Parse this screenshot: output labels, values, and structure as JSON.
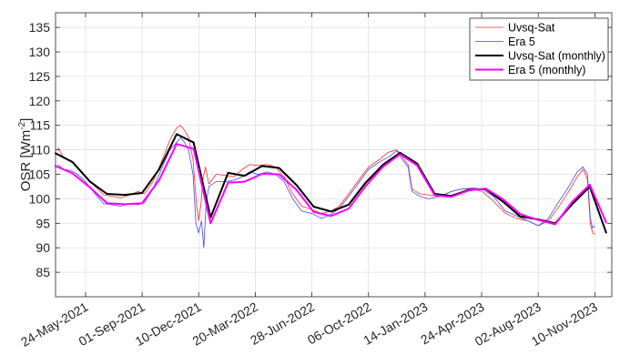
{
  "chart_data": {
    "type": "line",
    "ylabel_main": "OSR [Wm",
    "ylabel_sup": "-2",
    "ylabel_close": "]",
    "ylim": [
      80,
      138
    ],
    "yticks": [
      85,
      90,
      95,
      100,
      105,
      110,
      115,
      120,
      125,
      130,
      135
    ],
    "xlim": [
      "2021-04-01",
      "2023-12-10"
    ],
    "xticks": [
      {
        "date": "2021-05-24",
        "label": "24-May-2021"
      },
      {
        "date": "2021-09-01",
        "label": "01-Sep-2021"
      },
      {
        "date": "2021-12-10",
        "label": "10-Dec-2021"
      },
      {
        "date": "2022-03-20",
        "label": "20-Mar-2022"
      },
      {
        "date": "2022-06-28",
        "label": "28-Jun-2022"
      },
      {
        "date": "2022-10-06",
        "label": "06-Oct-2022"
      },
      {
        "date": "2023-01-14",
        "label": "14-Jan-2023"
      },
      {
        "date": "2023-04-24",
        "label": "24-Apr-2023"
      },
      {
        "date": "2023-08-02",
        "label": "02-Aug-2023"
      },
      {
        "date": "2023-11-10",
        "label": "10-Nov-2023"
      }
    ],
    "grid": true,
    "legend_position": "top-right",
    "series": [
      {
        "name": "Uvsq-Sat",
        "color": "#ff2a2a",
        "width": 0.8,
        "kind": "daily",
        "points": [
          [
            "2021-04-05",
            110.5
          ],
          [
            "2021-04-15",
            108.5
          ],
          [
            "2021-04-28",
            107.8
          ],
          [
            "2021-05-10",
            106.5
          ],
          [
            "2021-05-24",
            104.5
          ],
          [
            "2021-06-10",
            102.5
          ],
          [
            "2021-06-25",
            100.8
          ],
          [
            "2021-07-10",
            100.5
          ],
          [
            "2021-07-25",
            100.2
          ],
          [
            "2021-08-10",
            100.8
          ],
          [
            "2021-08-25",
            101.5
          ],
          [
            "2021-09-05",
            101.0
          ],
          [
            "2021-09-20",
            103.5
          ],
          [
            "2021-10-05",
            107.5
          ],
          [
            "2021-10-20",
            112.0
          ],
          [
            "2021-11-01",
            114.5
          ],
          [
            "2021-11-08",
            115.0
          ],
          [
            "2021-11-15",
            114.0
          ],
          [
            "2021-11-22",
            112.5
          ],
          [
            "2021-11-30",
            108.0
          ],
          [
            "2021-12-06",
            99.0
          ],
          [
            "2021-12-10",
            95.5
          ],
          [
            "2021-12-14",
            99.0
          ],
          [
            "2021-12-18",
            104.5
          ],
          [
            "2021-12-22",
            106.5
          ],
          [
            "2021-12-28",
            103.0
          ],
          [
            "2022-01-10",
            105.0
          ],
          [
            "2022-01-25",
            104.8
          ],
          [
            "2022-02-10",
            104.5
          ],
          [
            "2022-02-25",
            106.0
          ],
          [
            "2022-03-10",
            107.0
          ],
          [
            "2022-03-25",
            106.8
          ],
          [
            "2022-04-10",
            107.0
          ],
          [
            "2022-04-25",
            106.5
          ],
          [
            "2022-05-10",
            104.5
          ],
          [
            "2022-05-25",
            101.0
          ],
          [
            "2022-06-10",
            98.5
          ],
          [
            "2022-06-28",
            97.8
          ],
          [
            "2022-07-15",
            97.0
          ],
          [
            "2022-08-01",
            97.5
          ],
          [
            "2022-08-15",
            98.5
          ],
          [
            "2022-09-01",
            101.0
          ],
          [
            "2022-09-20",
            104.0
          ],
          [
            "2022-10-06",
            106.5
          ],
          [
            "2022-10-25",
            108.0
          ],
          [
            "2022-11-10",
            109.5
          ],
          [
            "2022-11-25",
            110.0
          ],
          [
            "2022-12-05",
            108.5
          ],
          [
            "2022-12-15",
            107.0
          ],
          [
            "2022-12-22",
            102.0
          ],
          [
            "2023-01-05",
            101.0
          ],
          [
            "2023-01-20",
            100.8
          ],
          [
            "2023-02-10",
            100.5
          ],
          [
            "2023-03-01",
            101.5
          ],
          [
            "2023-03-20",
            102.0
          ],
          [
            "2023-04-10",
            102.0
          ],
          [
            "2023-04-25",
            101.5
          ],
          [
            "2023-05-15",
            99.5
          ],
          [
            "2023-06-05",
            97.0
          ],
          [
            "2023-06-25",
            96.0
          ],
          [
            "2023-07-15",
            95.5
          ],
          [
            "2023-08-02",
            94.5
          ],
          [
            "2023-08-20",
            95.5
          ],
          [
            "2023-09-05",
            98.0
          ],
          [
            "2023-09-25",
            101.5
          ],
          [
            "2023-10-10",
            104.5
          ],
          [
            "2023-10-20",
            106.0
          ],
          [
            "2023-10-28",
            104.0
          ],
          [
            "2023-11-02",
            95.0
          ],
          [
            "2023-11-06",
            93.0
          ],
          [
            "2023-11-10",
            92.8
          ]
        ]
      },
      {
        "name": "Era 5",
        "color": "#4646ee",
        "width": 0.8,
        "kind": "daily",
        "points": [
          [
            "2021-04-05",
            107.0
          ],
          [
            "2021-04-15",
            106.0
          ],
          [
            "2021-04-28",
            105.8
          ],
          [
            "2021-05-10",
            105.0
          ],
          [
            "2021-05-24",
            103.5
          ],
          [
            "2021-06-10",
            101.0
          ],
          [
            "2021-06-25",
            99.0
          ],
          [
            "2021-07-10",
            98.8
          ],
          [
            "2021-07-25",
            98.5
          ],
          [
            "2021-08-10",
            99.0
          ],
          [
            "2021-08-25",
            98.8
          ],
          [
            "2021-09-05",
            99.2
          ],
          [
            "2021-09-20",
            102.0
          ],
          [
            "2021-10-05",
            106.0
          ],
          [
            "2021-10-20",
            110.0
          ],
          [
            "2021-11-01",
            111.5
          ],
          [
            "2021-11-08",
            112.5
          ],
          [
            "2021-11-15",
            111.5
          ],
          [
            "2021-11-22",
            110.0
          ],
          [
            "2021-11-30",
            105.0
          ],
          [
            "2021-12-05",
            95.0
          ],
          [
            "2021-12-10",
            93.0
          ],
          [
            "2021-12-15",
            95.5
          ],
          [
            "2021-12-19",
            90.0
          ],
          [
            "2021-12-23",
            99.0
          ],
          [
            "2021-12-28",
            102.5
          ],
          [
            "2022-01-10",
            103.5
          ],
          [
            "2022-01-25",
            103.5
          ],
          [
            "2022-02-10",
            103.8
          ],
          [
            "2022-02-25",
            104.5
          ],
          [
            "2022-03-10",
            105.5
          ],
          [
            "2022-03-25",
            105.0
          ],
          [
            "2022-04-10",
            105.5
          ],
          [
            "2022-04-25",
            105.0
          ],
          [
            "2022-05-10",
            103.5
          ],
          [
            "2022-05-25",
            100.0
          ],
          [
            "2022-06-10",
            97.5
          ],
          [
            "2022-06-28",
            97.0
          ],
          [
            "2022-07-15",
            96.0
          ],
          [
            "2022-08-01",
            96.8
          ],
          [
            "2022-08-15",
            98.0
          ],
          [
            "2022-09-01",
            100.5
          ],
          [
            "2022-09-20",
            103.5
          ],
          [
            "2022-10-06",
            106.0
          ],
          [
            "2022-10-25",
            107.5
          ],
          [
            "2022-11-10",
            108.5
          ],
          [
            "2022-11-25",
            109.8
          ],
          [
            "2022-12-05",
            108.0
          ],
          [
            "2022-12-15",
            106.5
          ],
          [
            "2022-12-22",
            101.5
          ],
          [
            "2023-01-05",
            100.5
          ],
          [
            "2023-01-20",
            100.0
          ],
          [
            "2023-02-10",
            100.5
          ],
          [
            "2023-03-01",
            101.5
          ],
          [
            "2023-03-20",
            102.0
          ],
          [
            "2023-04-10",
            102.2
          ],
          [
            "2023-04-25",
            102.0
          ],
          [
            "2023-05-15",
            100.5
          ],
          [
            "2023-06-05",
            97.5
          ],
          [
            "2023-06-25",
            96.5
          ],
          [
            "2023-07-15",
            95.5
          ],
          [
            "2023-08-02",
            94.5
          ],
          [
            "2023-08-20",
            96.0
          ],
          [
            "2023-09-05",
            99.0
          ],
          [
            "2023-09-25",
            102.5
          ],
          [
            "2023-10-10",
            105.5
          ],
          [
            "2023-10-20",
            106.5
          ],
          [
            "2023-10-28",
            105.0
          ],
          [
            "2023-11-02",
            96.0
          ],
          [
            "2023-11-06",
            94.0
          ],
          [
            "2023-11-10",
            94.5
          ]
        ]
      },
      {
        "name": "Uvsq-Sat (monthly)",
        "color": "#000000",
        "width": 2.0,
        "kind": "monthly",
        "points": [
          [
            "2021-04-01",
            109.3
          ],
          [
            "2021-05-01",
            107.5
          ],
          [
            "2021-06-01",
            103.5
          ],
          [
            "2021-07-01",
            101.0
          ],
          [
            "2021-08-01",
            100.8
          ],
          [
            "2021-09-01",
            101.2
          ],
          [
            "2021-10-01",
            106.0
          ],
          [
            "2021-11-01",
            113.2
          ],
          [
            "2021-12-01",
            111.5
          ],
          [
            "2021-12-31",
            96.2
          ],
          [
            "2022-01-31",
            105.3
          ],
          [
            "2022-03-01",
            104.7
          ],
          [
            "2022-04-01",
            106.7
          ],
          [
            "2022-05-01",
            106.3
          ],
          [
            "2022-06-01",
            102.8
          ],
          [
            "2022-07-01",
            98.4
          ],
          [
            "2022-08-01",
            97.4
          ],
          [
            "2022-09-01",
            98.8
          ],
          [
            "2022-10-01",
            103.3
          ],
          [
            "2022-11-01",
            107.0
          ],
          [
            "2022-12-01",
            109.4
          ],
          [
            "2022-12-31",
            107.2
          ],
          [
            "2023-01-31",
            101.0
          ],
          [
            "2023-03-01",
            100.6
          ],
          [
            "2023-04-01",
            101.8
          ],
          [
            "2023-05-01",
            102.0
          ],
          [
            "2023-06-01",
            99.4
          ],
          [
            "2023-07-01",
            96.4
          ],
          [
            "2023-08-01",
            95.8
          ],
          [
            "2023-09-01",
            95.0
          ],
          [
            "2023-10-01",
            98.9
          ],
          [
            "2023-11-01",
            102.5
          ],
          [
            "2023-11-30",
            93.1
          ]
        ]
      },
      {
        "name": "Era 5 (monthly)",
        "color": "#ff00ff",
        "width": 2.0,
        "kind": "monthly",
        "points": [
          [
            "2021-04-01",
            106.7
          ],
          [
            "2021-05-01",
            105.2
          ],
          [
            "2021-06-01",
            102.3
          ],
          [
            "2021-07-01",
            99.1
          ],
          [
            "2021-08-01",
            98.9
          ],
          [
            "2021-09-01",
            99.1
          ],
          [
            "2021-10-01",
            103.8
          ],
          [
            "2021-11-01",
            111.2
          ],
          [
            "2021-12-01",
            110.2
          ],
          [
            "2021-12-31",
            95.0
          ],
          [
            "2022-01-31",
            103.3
          ],
          [
            "2022-03-01",
            103.5
          ],
          [
            "2022-04-01",
            105.1
          ],
          [
            "2022-05-01",
            105.0
          ],
          [
            "2022-06-01",
            101.8
          ],
          [
            "2022-07-01",
            97.3
          ],
          [
            "2022-08-01",
            96.5
          ],
          [
            "2022-09-01",
            98.0
          ],
          [
            "2022-10-01",
            102.6
          ],
          [
            "2022-11-01",
            106.6
          ],
          [
            "2022-12-01",
            109.1
          ],
          [
            "2022-12-31",
            106.8
          ],
          [
            "2023-01-31",
            100.7
          ],
          [
            "2023-03-01",
            100.4
          ],
          [
            "2023-04-01",
            101.7
          ],
          [
            "2023-05-01",
            102.1
          ],
          [
            "2023-06-01",
            99.9
          ],
          [
            "2023-07-01",
            96.9
          ],
          [
            "2023-08-01",
            95.7
          ],
          [
            "2023-09-01",
            94.8
          ],
          [
            "2023-10-01",
            99.4
          ],
          [
            "2023-11-01",
            102.9
          ],
          [
            "2023-11-30",
            95.2
          ]
        ]
      }
    ]
  }
}
